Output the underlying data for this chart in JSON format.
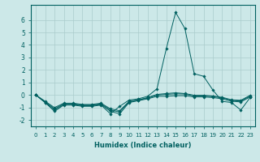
{
  "xlabel": "Humidex (Indice chaleur)",
  "bg_color": "#cce8e8",
  "grid_color": "#aacccc",
  "line_color": "#006060",
  "xlim": [
    -0.5,
    23.5
  ],
  "ylim": [
    -2.5,
    7.2
  ],
  "x": [
    0,
    1,
    2,
    3,
    4,
    5,
    6,
    7,
    8,
    9,
    10,
    11,
    12,
    13,
    14,
    15,
    16,
    17,
    18,
    19,
    20,
    21,
    22,
    23
  ],
  "lines": [
    [
      0.0,
      -0.6,
      -1.3,
      -0.8,
      -0.8,
      -0.9,
      -0.9,
      -0.8,
      -1.5,
      -0.9,
      -0.4,
      -0.3,
      -0.1,
      0.5,
      3.7,
      6.6,
      5.3,
      1.7,
      1.5,
      0.4,
      -0.5,
      -0.6,
      -1.2,
      -0.2
    ],
    [
      0.0,
      -0.6,
      -1.2,
      -0.75,
      -0.75,
      -0.85,
      -0.85,
      -0.75,
      -1.3,
      -1.5,
      -0.6,
      -0.45,
      -0.3,
      -0.1,
      -0.1,
      -0.05,
      -0.05,
      -0.15,
      -0.15,
      -0.2,
      -0.3,
      -0.5,
      -0.55,
      -0.15
    ],
    [
      0.0,
      -0.55,
      -1.1,
      -0.7,
      -0.7,
      -0.8,
      -0.8,
      -0.7,
      -1.2,
      -1.35,
      -0.55,
      -0.4,
      -0.25,
      0.0,
      0.05,
      0.1,
      0.08,
      -0.08,
      -0.08,
      -0.12,
      -0.22,
      -0.42,
      -0.48,
      -0.08
    ],
    [
      0.0,
      -0.5,
      -1.0,
      -0.65,
      -0.65,
      -0.75,
      -0.75,
      -0.65,
      -1.1,
      -1.25,
      -0.5,
      -0.38,
      -0.2,
      0.05,
      0.12,
      0.18,
      0.12,
      -0.02,
      -0.02,
      -0.08,
      -0.18,
      -0.38,
      -0.42,
      -0.02
    ]
  ],
  "yticks": [
    -2,
    -1,
    0,
    1,
    2,
    3,
    4,
    5,
    6
  ],
  "xticks": [
    0,
    1,
    2,
    3,
    4,
    5,
    6,
    7,
    8,
    9,
    10,
    11,
    12,
    13,
    14,
    15,
    16,
    17,
    18,
    19,
    20,
    21,
    22,
    23
  ]
}
